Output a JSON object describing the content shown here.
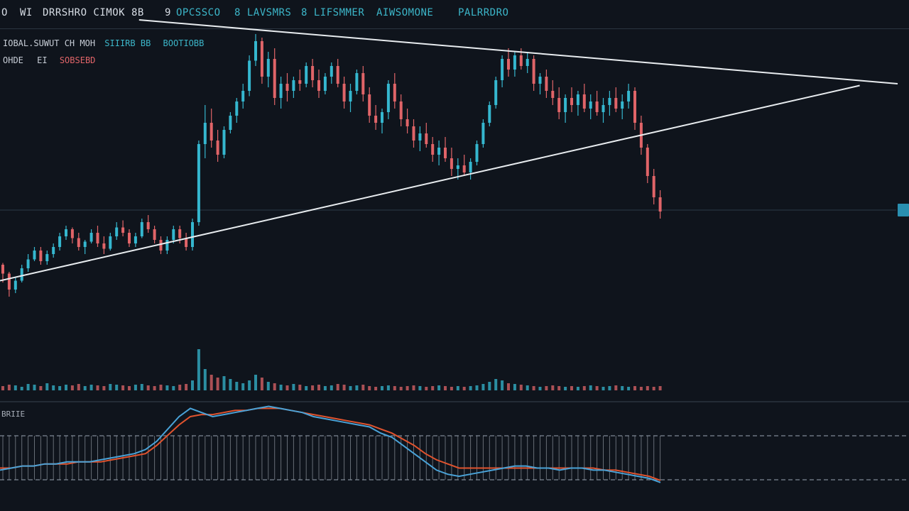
{
  "header": {
    "items": [
      {
        "text": "O",
        "color": "#d7dde5"
      },
      {
        "text": "WI",
        "color": "#d7dde5"
      },
      {
        "text": "DRRSHRO CIMOK 8B",
        "color": "#d7dde5"
      },
      {
        "text": "9",
        "color": "#d7dde5"
      },
      {
        "text": "OPCSSCO",
        "color": "#3cb6c9"
      },
      {
        "text": "8 LAVSMRS",
        "color": "#3cb6c9"
      },
      {
        "text": "8 LIFSMMER",
        "color": "#3cb6c9"
      },
      {
        "text": "AIWSOMONE",
        "color": "#3cb6c9"
      },
      {
        "text": "PALRRDRO",
        "color": "#3cb6c9"
      }
    ]
  },
  "legend": {
    "line1_a": "IOBAL.SUWUT CH MOH",
    "line1_b": "SIIIRB BB",
    "line1_c": "BOOTIOBB",
    "line2_a": "OHDE",
    "line2_b": "EI",
    "line2_c": "SOBSEBD"
  },
  "oscillator": {
    "label": "BRIIE"
  },
  "colors": {
    "up": "#35b7cf",
    "down": "#e06468",
    "trendline": "#e8ecef",
    "fast_line": "#4aa3d8",
    "slow_line": "#e0532e",
    "background": "#0f141c"
  },
  "chart_data": {
    "type": "candlestick",
    "y_axis": "price (unlabeled)",
    "pattern": "symmetrical triangle",
    "note_values_estimated": true,
    "candles": [
      [
        70,
        71,
        60,
        65
      ],
      [
        65,
        66,
        52,
        56
      ],
      [
        56,
        63,
        54,
        61
      ],
      [
        61,
        70,
        60,
        68
      ],
      [
        68,
        76,
        66,
        73
      ],
      [
        73,
        80,
        72,
        78
      ],
      [
        78,
        80,
        70,
        72
      ],
      [
        72,
        78,
        70,
        76
      ],
      [
        76,
        82,
        74,
        80
      ],
      [
        80,
        88,
        78,
        86
      ],
      [
        86,
        92,
        84,
        90
      ],
      [
        90,
        91,
        82,
        85
      ],
      [
        85,
        88,
        78,
        80
      ],
      [
        80,
        84,
        76,
        83
      ],
      [
        83,
        90,
        82,
        88
      ],
      [
        88,
        92,
        80,
        82
      ],
      [
        82,
        86,
        76,
        79
      ],
      [
        79,
        88,
        78,
        86
      ],
      [
        86,
        94,
        84,
        91
      ],
      [
        91,
        95,
        86,
        88
      ],
      [
        88,
        90,
        80,
        82
      ],
      [
        82,
        88,
        80,
        86
      ],
      [
        86,
        96,
        85,
        94
      ],
      [
        94,
        98,
        88,
        90
      ],
      [
        90,
        92,
        82,
        84
      ],
      [
        84,
        86,
        76,
        78
      ],
      [
        78,
        86,
        76,
        84
      ],
      [
        84,
        92,
        82,
        90
      ],
      [
        90,
        92,
        82,
        85
      ],
      [
        85,
        88,
        78,
        80
      ],
      [
        80,
        96,
        78,
        94
      ],
      [
        94,
        140,
        92,
        138
      ],
      [
        138,
        160,
        130,
        150
      ],
      [
        150,
        158,
        136,
        140
      ],
      [
        140,
        146,
        128,
        132
      ],
      [
        132,
        148,
        130,
        146
      ],
      [
        146,
        156,
        144,
        154
      ],
      [
        154,
        164,
        150,
        162
      ],
      [
        162,
        172,
        158,
        168
      ],
      [
        168,
        188,
        165,
        185
      ],
      [
        185,
        200,
        182,
        196
      ],
      [
        196,
        198,
        172,
        176
      ],
      [
        176,
        190,
        170,
        186
      ],
      [
        186,
        192,
        160,
        164
      ],
      [
        164,
        176,
        158,
        172
      ],
      [
        172,
        178,
        162,
        168
      ],
      [
        168,
        176,
        164,
        174
      ],
      [
        174,
        180,
        168,
        172
      ],
      [
        172,
        184,
        170,
        182
      ],
      [
        182,
        186,
        170,
        174
      ],
      [
        174,
        180,
        164,
        168
      ],
      [
        168,
        178,
        166,
        176
      ],
      [
        176,
        184,
        172,
        182
      ],
      [
        182,
        186,
        170,
        172
      ],
      [
        172,
        176,
        158,
        162
      ],
      [
        162,
        172,
        156,
        168
      ],
      [
        168,
        180,
        166,
        178
      ],
      [
        178,
        182,
        162,
        166
      ],
      [
        166,
        170,
        150,
        154
      ],
      [
        154,
        160,
        146,
        150
      ],
      [
        150,
        158,
        144,
        156
      ],
      [
        156,
        174,
        152,
        172
      ],
      [
        172,
        178,
        158,
        162
      ],
      [
        162,
        166,
        148,
        152
      ],
      [
        152,
        158,
        144,
        148
      ],
      [
        148,
        152,
        136,
        140
      ],
      [
        140,
        148,
        134,
        144
      ],
      [
        144,
        150,
        136,
        138
      ],
      [
        138,
        142,
        128,
        132
      ],
      [
        132,
        140,
        126,
        136
      ],
      [
        136,
        142,
        128,
        130
      ],
      [
        130,
        136,
        120,
        124
      ],
      [
        124,
        130,
        118,
        126
      ],
      [
        126,
        132,
        120,
        122
      ],
      [
        122,
        130,
        118,
        128
      ],
      [
        128,
        140,
        126,
        138
      ],
      [
        138,
        152,
        136,
        150
      ],
      [
        150,
        162,
        148,
        160
      ],
      [
        160,
        176,
        158,
        174
      ],
      [
        174,
        188,
        170,
        186
      ],
      [
        186,
        192,
        176,
        180
      ],
      [
        180,
        190,
        176,
        188
      ],
      [
        188,
        192,
        180,
        182
      ],
      [
        182,
        190,
        178,
        186
      ],
      [
        186,
        188,
        168,
        172
      ],
      [
        172,
        178,
        166,
        176
      ],
      [
        176,
        180,
        164,
        168
      ],
      [
        168,
        174,
        160,
        164
      ],
      [
        164,
        170,
        152,
        156
      ],
      [
        156,
        166,
        150,
        164
      ],
      [
        164,
        170,
        156,
        160
      ],
      [
        160,
        168,
        154,
        166
      ],
      [
        166,
        172,
        156,
        158
      ],
      [
        158,
        166,
        152,
        162
      ],
      [
        162,
        168,
        154,
        156
      ],
      [
        156,
        164,
        150,
        160
      ],
      [
        160,
        168,
        154,
        164
      ],
      [
        164,
        170,
        156,
        158
      ],
      [
        158,
        166,
        152,
        162
      ],
      [
        162,
        172,
        158,
        168
      ],
      [
        168,
        170,
        146,
        150
      ],
      [
        150,
        154,
        132,
        136
      ],
      [
        136,
        138,
        116,
        120
      ],
      [
        120,
        124,
        104,
        108
      ],
      [
        108,
        112,
        96,
        100
      ]
    ],
    "volume": [
      6,
      8,
      7,
      5,
      9,
      8,
      6,
      10,
      7,
      6,
      8,
      7,
      9,
      6,
      8,
      7,
      6,
      9,
      8,
      7,
      6,
      8,
      9,
      7,
      6,
      8,
      7,
      6,
      8,
      9,
      14,
      58,
      30,
      22,
      18,
      20,
      16,
      12,
      10,
      14,
      22,
      18,
      12,
      10,
      8,
      7,
      9,
      8,
      6,
      7,
      8,
      6,
      7,
      9,
      8,
      6,
      7,
      8,
      6,
      5,
      6,
      7,
      6,
      5,
      6,
      7,
      6,
      5,
      6,
      7,
      6,
      5,
      6,
      5,
      6,
      7,
      9,
      12,
      16,
      14,
      10,
      9,
      8,
      7,
      6,
      5,
      6,
      7,
      6,
      5,
      6,
      5,
      6,
      7,
      6,
      5,
      6,
      7,
      6,
      5,
      6,
      5,
      6,
      5,
      6
    ],
    "trendlines": [
      {
        "name": "upper",
        "from": [
          22,
          208
        ],
        "to": [
          140,
          172
        ]
      },
      {
        "name": "lower",
        "from": [
          0,
          61
        ],
        "to": [
          134,
          171
        ]
      }
    ],
    "oscillator": {
      "fast": [
        -6,
        -5,
        -4,
        -4,
        -3,
        -3,
        -2,
        -2,
        -2,
        -1,
        0,
        1,
        2,
        4,
        8,
        14,
        20,
        24,
        22,
        20,
        21,
        22,
        23,
        24,
        25,
        24,
        23,
        22,
        20,
        19,
        18,
        17,
        16,
        15,
        12,
        10,
        6,
        2,
        -2,
        -6,
        -8,
        -9,
        -8,
        -7,
        -6,
        -5,
        -4,
        -4,
        -5,
        -5,
        -6,
        -5,
        -5,
        -6,
        -6,
        -7,
        -8,
        -9,
        -10,
        -12
      ],
      "slow": [
        -5,
        -5,
        -4,
        -4,
        -3,
        -3,
        -3,
        -2,
        -2,
        -2,
        -1,
        0,
        1,
        2,
        6,
        11,
        16,
        20,
        21,
        21,
        22,
        23,
        23,
        24,
        24,
        24,
        23,
        22,
        21,
        20,
        19,
        18,
        17,
        16,
        14,
        12,
        9,
        6,
        2,
        -1,
        -3,
        -5,
        -5,
        -5,
        -5,
        -5,
        -5,
        -5,
        -5,
        -5,
        -5,
        -5,
        -5,
        -5,
        -6,
        -6,
        -7,
        -8,
        -9,
        -11
      ]
    }
  }
}
